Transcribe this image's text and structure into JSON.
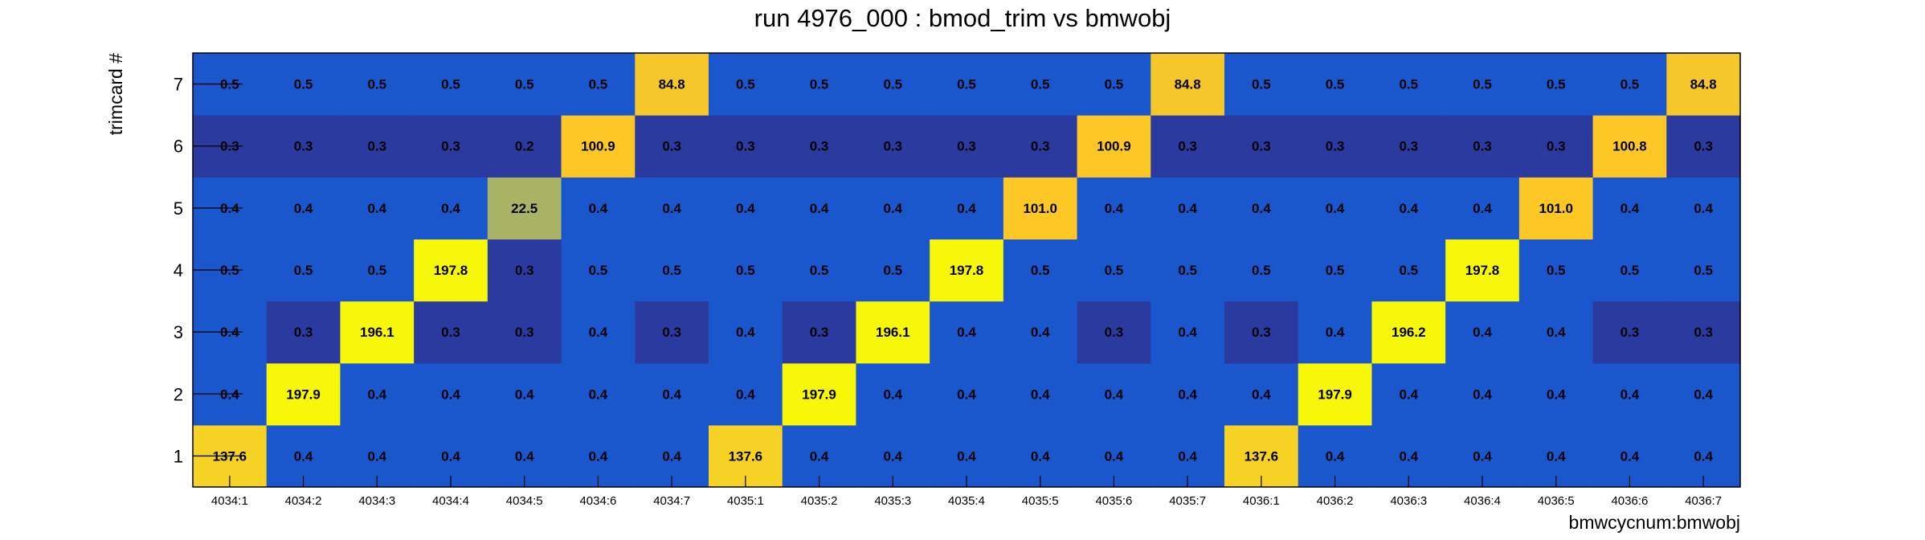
{
  "chart_data": {
    "type": "heatmap",
    "title": "run 4976_000 : bmod_trim vs bmwobj",
    "xlabel": "bmwcycnum:bmwobj",
    "ylabel": "trimcard #",
    "x_categories": [
      "4034:1",
      "4034:2",
      "4034:3",
      "4034:4",
      "4034:5",
      "4034:6",
      "4034:7",
      "4035:1",
      "4035:2",
      "4035:3",
      "4035:4",
      "4035:5",
      "4035:6",
      "4035:7",
      "4036:1",
      "4036:2",
      "4036:3",
      "4036:4",
      "4036:5",
      "4036:6",
      "4036:7"
    ],
    "y_categories": [
      "1",
      "2",
      "3",
      "4",
      "5",
      "6",
      "7"
    ],
    "z_labels": [
      [
        "137.6",
        "0.4",
        "0.4",
        "0.4",
        "0.4",
        "0.4",
        "0.4",
        "137.6",
        "0.4",
        "0.4",
        "0.4",
        "0.4",
        "0.4",
        "0.4",
        "137.6",
        "0.4",
        "0.4",
        "0.4",
        "0.4",
        "0.4",
        "0.4"
      ],
      [
        "0.4",
        "197.9",
        "0.4",
        "0.4",
        "0.4",
        "0.4",
        "0.4",
        "0.4",
        "197.9",
        "0.4",
        "0.4",
        "0.4",
        "0.4",
        "0.4",
        "0.4",
        "197.9",
        "0.4",
        "0.4",
        "0.4",
        "0.4",
        "0.4"
      ],
      [
        "0.4",
        "0.3",
        "196.1",
        "0.3",
        "0.3",
        "0.4",
        "0.3",
        "0.4",
        "0.3",
        "196.1",
        "0.4",
        "0.4",
        "0.3",
        "0.4",
        "0.3",
        "0.4",
        "196.2",
        "0.4",
        "0.4",
        "0.3",
        "0.3"
      ],
      [
        "0.5",
        "0.5",
        "0.5",
        "197.8",
        "0.3",
        "0.5",
        "0.5",
        "0.5",
        "0.5",
        "0.5",
        "197.8",
        "0.5",
        "0.5",
        "0.5",
        "0.5",
        "0.5",
        "0.5",
        "197.8",
        "0.5",
        "0.5",
        "0.5"
      ],
      [
        "0.4",
        "0.4",
        "0.4",
        "0.4",
        "22.5",
        "0.4",
        "0.4",
        "0.4",
        "0.4",
        "0.4",
        "0.4",
        "101.0",
        "0.4",
        "0.4",
        "0.4",
        "0.4",
        "0.4",
        "0.4",
        "101.0",
        "0.4",
        "0.4"
      ],
      [
        "0.3",
        "0.3",
        "0.3",
        "0.3",
        "0.2",
        "100.9",
        "0.3",
        "0.3",
        "0.3",
        "0.3",
        "0.3",
        "0.3",
        "100.9",
        "0.3",
        "0.3",
        "0.3",
        "0.3",
        "0.3",
        "0.3",
        "100.8",
        "0.3"
      ],
      [
        "0.5",
        "0.5",
        "0.5",
        "0.5",
        "0.5",
        "0.5",
        "84.8",
        "0.5",
        "0.5",
        "0.5",
        "0.5",
        "0.5",
        "0.5",
        "84.8",
        "0.5",
        "0.5",
        "0.5",
        "0.5",
        "0.5",
        "0.5",
        "84.8"
      ]
    ],
    "color_scale": [
      {
        "max": 0.35,
        "color": "#2a3a9f"
      },
      {
        "max": 10,
        "color": "#1a56cc"
      },
      {
        "max": 50,
        "color": "#a8b463"
      },
      {
        "max": 90,
        "color": "#f5c72a"
      },
      {
        "max": 130,
        "color": "#fdc725"
      },
      {
        "max": 150,
        "color": "#f6d225"
      },
      {
        "max": 1000,
        "color": "#f7f70a"
      }
    ],
    "grid": false,
    "legend": "none"
  }
}
